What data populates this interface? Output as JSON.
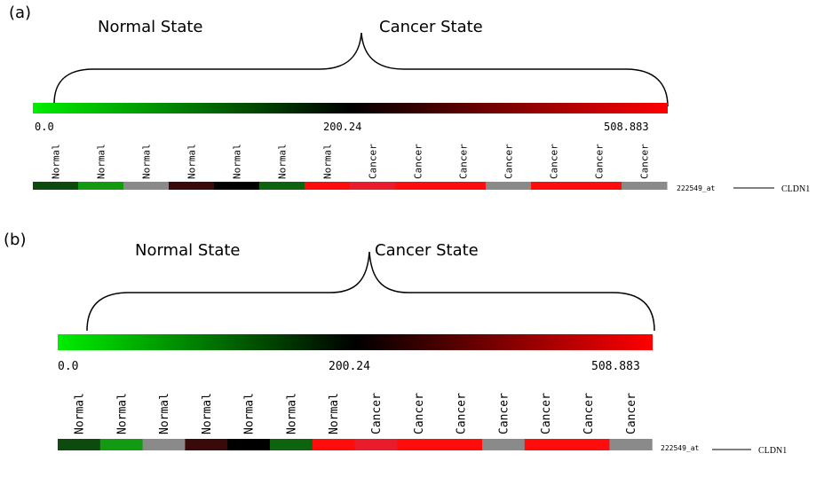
{
  "colors": {
    "low": "#00ee00",
    "mid": "#000000",
    "high": "#ff0000"
  },
  "panels": [
    {
      "id": "a",
      "label": "(a)",
      "normal_state_label": "Normal State",
      "cancer_state_label": "Cancer State",
      "scale": {
        "min_label": "0.0",
        "mid_label": "200.24",
        "max_label": "508.883"
      },
      "samples": [
        {
          "label": "Normal",
          "color": "#0d4a0d"
        },
        {
          "label": "Normal",
          "color": "#139a13"
        },
        {
          "label": "Normal",
          "color": "#8a8a8a"
        },
        {
          "label": "Normal",
          "color": "#3a0a0a"
        },
        {
          "label": "Normal",
          "color": "#000000"
        },
        {
          "label": "Normal",
          "color": "#0e640e"
        },
        {
          "label": "Normal",
          "color": "#ff0d0d"
        },
        {
          "label": "Cancer",
          "color": "#e81c2a"
        },
        {
          "label": "Cancer",
          "color": "#ff0d0d"
        },
        {
          "label": "Cancer",
          "color": "#ff0d0d"
        },
        {
          "label": "Cancer",
          "color": "#8a8a8a"
        },
        {
          "label": "Cancer",
          "color": "#ff0d0d"
        },
        {
          "label": "Cancer",
          "color": "#ff0d0d"
        },
        {
          "label": "Cancer",
          "color": "#8a8a8a"
        }
      ],
      "probe_id": "222549_at",
      "gene": "CLDN1"
    },
    {
      "id": "b",
      "label": "(b)",
      "normal_state_label": "Normal State",
      "cancer_state_label": "Cancer State",
      "scale": {
        "min_label": "0.0",
        "mid_label": "200.24",
        "max_label": "508.883"
      },
      "samples": [
        {
          "label": "Normal",
          "color": "#0d4a0d"
        },
        {
          "label": "Normal",
          "color": "#139a13"
        },
        {
          "label": "Normal",
          "color": "#8a8a8a"
        },
        {
          "label": "Normal",
          "color": "#3a0a0a"
        },
        {
          "label": "Normal",
          "color": "#000000"
        },
        {
          "label": "Normal",
          "color": "#0e640e"
        },
        {
          "label": "Normal",
          "color": "#ff0d0d"
        },
        {
          "label": "Cancer",
          "color": "#e81c2a"
        },
        {
          "label": "Cancer",
          "color": "#ff0d0d"
        },
        {
          "label": "Cancer",
          "color": "#ff0d0d"
        },
        {
          "label": "Cancer",
          "color": "#8a8a8a"
        },
        {
          "label": "Cancer",
          "color": "#ff0d0d"
        },
        {
          "label": "Cancer",
          "color": "#ff0d0d"
        },
        {
          "label": "Cancer",
          "color": "#8a8a8a"
        }
      ],
      "probe_id": "222549_at",
      "gene": "CLDN1"
    }
  ]
}
